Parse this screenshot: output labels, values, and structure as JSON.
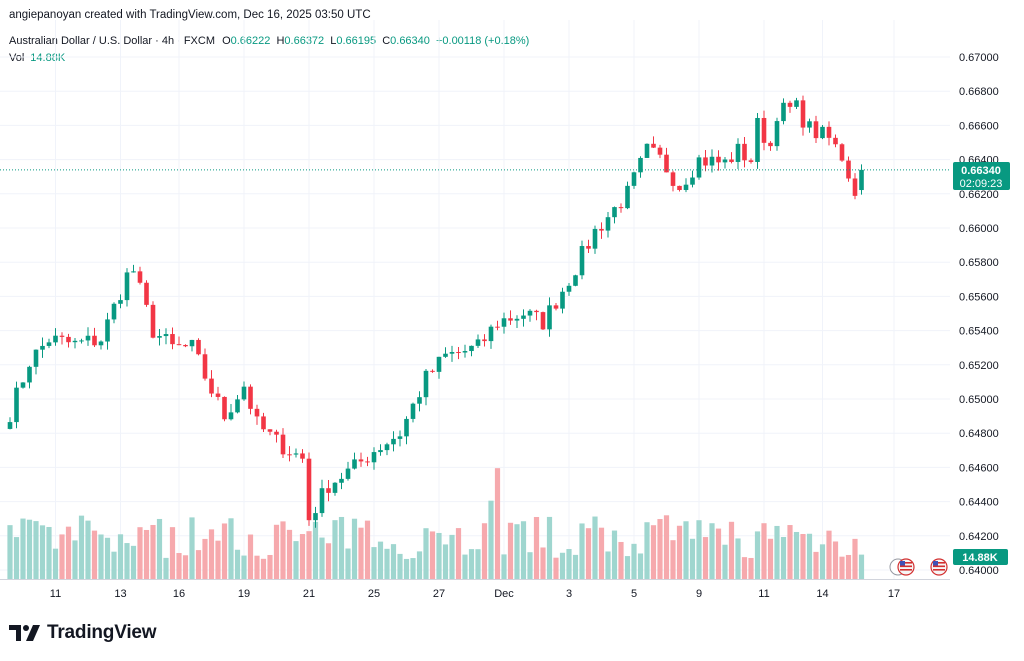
{
  "attribution": "angiepanoyan created with TradingView.com, Dec 16, 2025 03:50 UTC",
  "legend": {
    "symbol": "Australian Dollar / U.S. Dollar · 4h · FXCM",
    "o_label": "O",
    "o_value": "0.66222",
    "h_label": "H",
    "h_value": "0.66372",
    "l_label": "L",
    "l_value": "0.66195",
    "c_label": "C",
    "c_value": "0.66340",
    "change": "+0.00118 (+0.18%)",
    "vol_label": "Vol",
    "vol_value": "14.88K"
  },
  "price_tag": {
    "price": "0.66340",
    "countdown": "02:09:23"
  },
  "volume_tag": "14.88K",
  "brand": "TradingView",
  "icons": [
    "tradingview-logo-icon",
    "us-flag-event-icon"
  ],
  "colors": {
    "up": "#089981",
    "down": "#f23645",
    "up_vol": "#9fd6cf",
    "down_vol": "#f6a9ad",
    "grid": "#f0f3fa",
    "text": "#131722"
  },
  "chart_data": {
    "type": "candlestick",
    "timeframe": "4h",
    "y_ticks": [
      "0.67000",
      "0.66800",
      "0.66600",
      "0.66400",
      "0.66200",
      "0.66000",
      "0.65800",
      "0.65600",
      "0.65400",
      "0.65200",
      "0.65000",
      "0.64800",
      "0.64600",
      "0.64400",
      "0.64200",
      "0.64000"
    ],
    "ylim": [
      0.64,
      0.671
    ],
    "x_ticks": [
      {
        "label": "11",
        "bar": 7
      },
      {
        "label": "13",
        "bar": 17
      },
      {
        "label": "16",
        "bar": 26
      },
      {
        "label": "19",
        "bar": 36
      },
      {
        "label": "21",
        "bar": 46
      },
      {
        "label": "25",
        "bar": 56
      },
      {
        "label": "27",
        "bar": 66
      },
      {
        "label": "Dec",
        "bar": 76
      },
      {
        "label": "3",
        "bar": 86
      },
      {
        "label": "5",
        "bar": 96
      },
      {
        "label": "9",
        "bar": 106
      },
      {
        "label": "11",
        "bar": 116
      },
      {
        "label": "14",
        "bar": 125
      },
      {
        "label": "17",
        "bar": 136
      }
    ],
    "anchors": [
      [
        0,
        0.6492
      ],
      [
        3,
        0.6522
      ],
      [
        6,
        0.6535
      ],
      [
        10,
        0.6532
      ],
      [
        14,
        0.6535
      ],
      [
        18,
        0.6572
      ],
      [
        19,
        0.6575
      ],
      [
        22,
        0.654
      ],
      [
        25,
        0.653
      ],
      [
        28,
        0.653
      ],
      [
        31,
        0.6505
      ],
      [
        33,
        0.649
      ],
      [
        36,
        0.6508
      ],
      [
        38,
        0.6485
      ],
      [
        41,
        0.6475
      ],
      [
        45,
        0.6465
      ],
      [
        46,
        0.643
      ],
      [
        49,
        0.645
      ],
      [
        53,
        0.646
      ],
      [
        56,
        0.647
      ],
      [
        60,
        0.648
      ],
      [
        64,
        0.6512
      ],
      [
        67,
        0.6525
      ],
      [
        72,
        0.653
      ],
      [
        75,
        0.6545
      ],
      [
        79,
        0.655
      ],
      [
        82,
        0.6545
      ],
      [
        86,
        0.657
      ],
      [
        90,
        0.6598
      ],
      [
        95,
        0.662
      ],
      [
        98,
        0.6645
      ],
      [
        100,
        0.664
      ],
      [
        103,
        0.6625
      ],
      [
        106,
        0.664
      ],
      [
        110,
        0.6638
      ],
      [
        112,
        0.6645
      ],
      [
        114,
        0.664
      ],
      [
        115,
        0.666
      ],
      [
        117,
        0.6648
      ],
      [
        118,
        0.6668
      ],
      [
        121,
        0.667
      ],
      [
        123,
        0.6658
      ],
      [
        126,
        0.6652
      ],
      [
        128,
        0.6642
      ],
      [
        130,
        0.6622
      ],
      [
        131,
        0.6634
      ]
    ],
    "last_bar": {
      "open": 0.66222,
      "high": 0.66372,
      "low": 0.66195,
      "close": 0.6634
    },
    "current_price": 0.6634
  }
}
